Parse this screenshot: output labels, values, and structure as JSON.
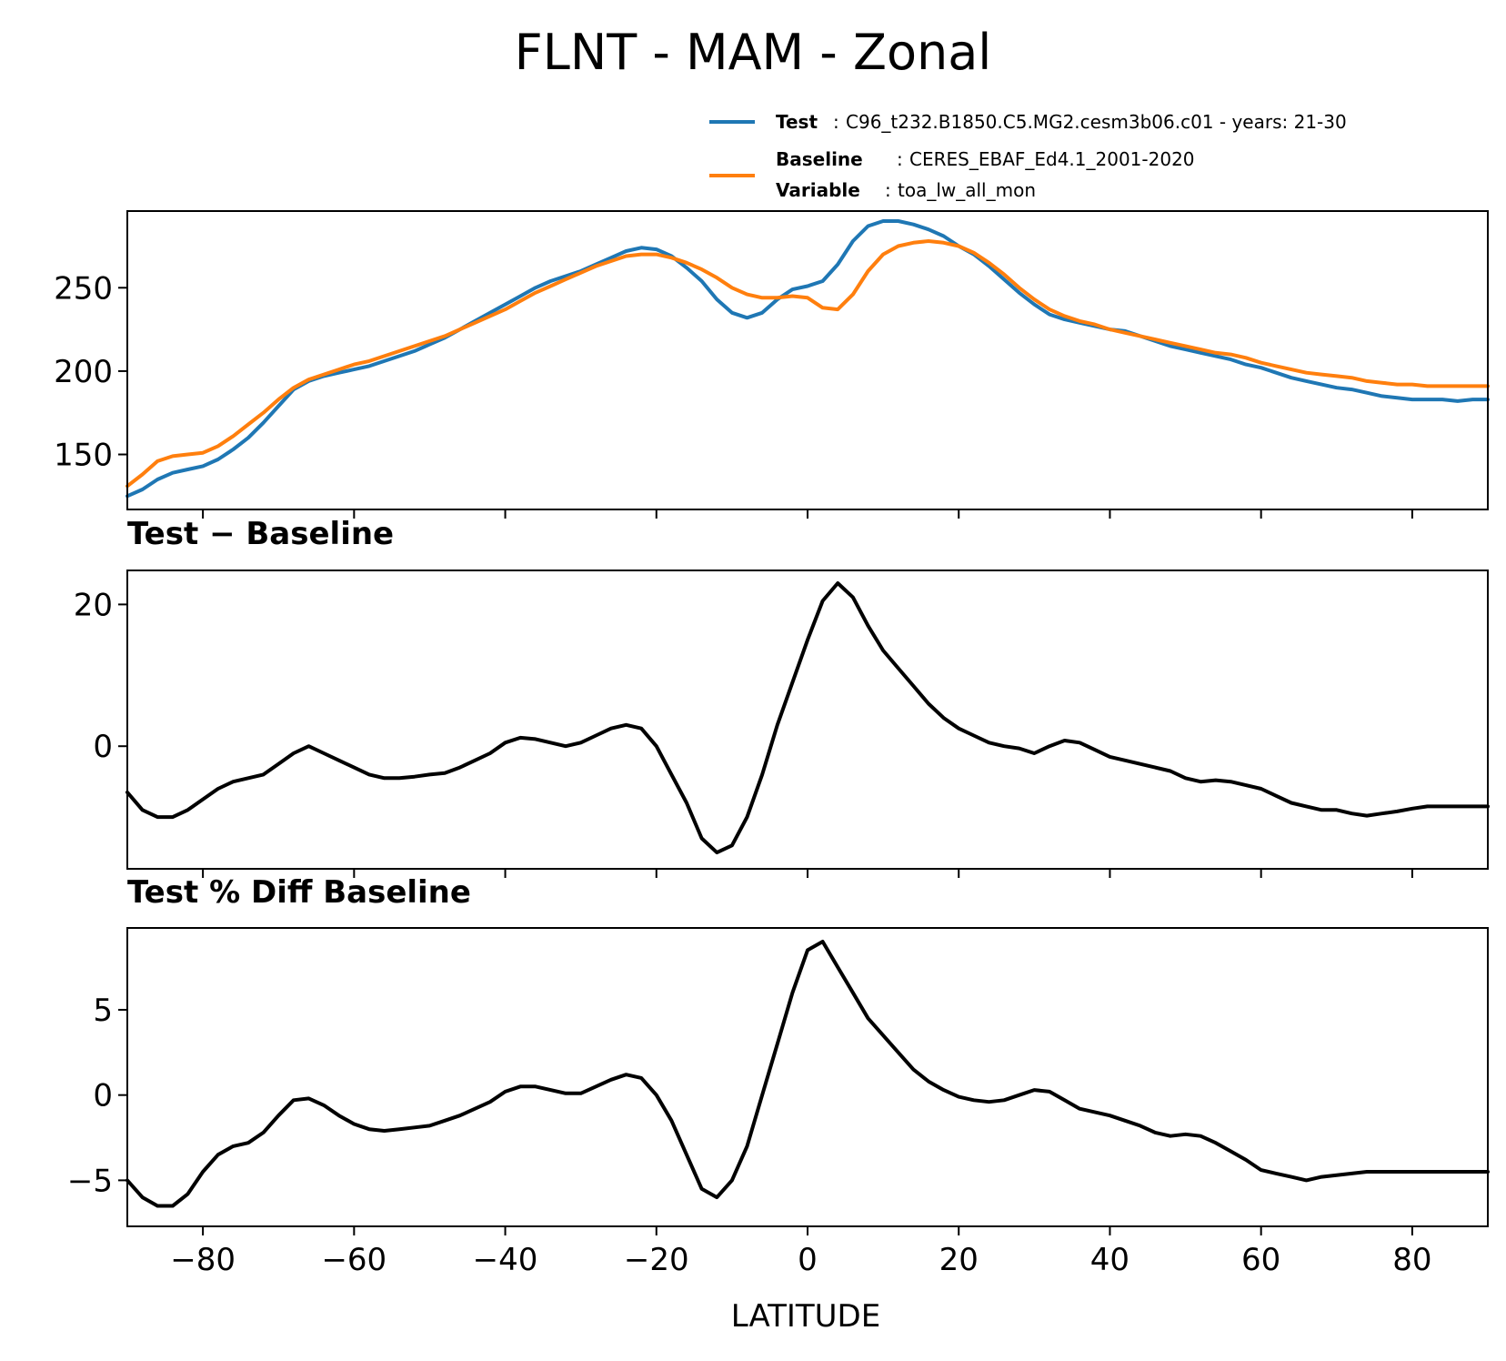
{
  "title": "FLNT - MAM - Zonal",
  "legend": {
    "test_key": "Test",
    "test_value": "C96_t232.B1850.C5.MG2.cesm3b06.c01 - years: 21-30",
    "baseline_key": "Baseline",
    "baseline_value": "CERES_EBAF_Ed4.1_2001-2020",
    "variable_key": "Variable",
    "variable_value": "toa_lw_all_mon",
    "sep": ":"
  },
  "colors": {
    "test": "#1f77b4",
    "baseline": "#ff7f0e",
    "diff": "#000000"
  },
  "chart_data": [
    {
      "type": "line",
      "title": "",
      "xlabel": "",
      "ylabel": "",
      "xlim": [
        -90,
        90
      ],
      "ylim": [
        117,
        296
      ],
      "yticks": [
        150,
        200,
        250
      ],
      "x": [
        -90,
        -88,
        -86,
        -84,
        -82,
        -80,
        -78,
        -76,
        -74,
        -72,
        -70,
        -68,
        -66,
        -64,
        -62,
        -60,
        -58,
        -56,
        -54,
        -52,
        -50,
        -48,
        -46,
        -44,
        -42,
        -40,
        -38,
        -36,
        -34,
        -32,
        -30,
        -28,
        -26,
        -24,
        -22,
        -20,
        -18,
        -16,
        -14,
        -12,
        -10,
        -8,
        -6,
        -4,
        -2,
        0,
        2,
        4,
        6,
        8,
        10,
        12,
        14,
        16,
        18,
        20,
        22,
        24,
        26,
        28,
        30,
        32,
        34,
        36,
        38,
        40,
        42,
        44,
        46,
        48,
        50,
        52,
        54,
        56,
        58,
        60,
        62,
        64,
        66,
        68,
        70,
        72,
        74,
        76,
        78,
        80,
        82,
        84,
        86,
        88,
        90
      ],
      "series": [
        {
          "name": "Test",
          "color": "#1f77b4",
          "values": [
            125,
            129,
            135,
            139,
            141,
            143,
            147,
            153,
            160,
            169,
            179,
            189,
            194,
            197,
            199,
            201,
            203,
            206,
            209,
            212,
            216,
            220,
            225,
            230,
            235,
            240,
            245,
            250,
            254,
            257,
            260,
            264,
            268,
            272,
            274,
            273,
            269,
            262,
            254,
            243,
            235,
            232,
            235,
            243,
            249,
            251,
            254,
            264,
            278,
            287,
            290,
            290,
            288,
            285,
            281,
            275,
            270,
            263,
            255,
            247,
            240,
            234,
            231,
            229,
            227,
            225,
            224,
            221,
            218,
            215,
            213,
            211,
            209,
            207,
            204,
            202,
            199,
            196,
            194,
            192,
            190,
            189,
            187,
            185,
            184,
            183,
            183,
            183,
            182,
            183,
            183
          ]
        },
        {
          "name": "Baseline",
          "color": "#ff7f0e",
          "values": [
            131,
            138,
            146,
            149,
            150,
            151,
            155,
            161,
            168,
            175,
            183,
            190,
            195,
            198,
            201,
            204,
            206,
            209,
            212,
            215,
            218,
            221,
            225,
            229,
            233,
            237,
            242,
            247,
            251,
            255,
            259,
            263,
            266,
            269,
            270,
            270,
            268,
            265,
            261,
            256,
            250,
            246,
            244,
            244,
            245,
            244,
            238,
            237,
            246,
            260,
            270,
            275,
            277,
            278,
            277,
            275,
            271,
            265,
            258,
            250,
            243,
            237,
            233,
            230,
            228,
            225,
            223,
            221,
            219,
            217,
            215,
            213,
            211,
            210,
            208,
            205,
            203,
            201,
            199,
            198,
            197,
            196,
            194,
            193,
            192,
            192,
            191,
            191,
            191,
            191,
            191
          ]
        }
      ]
    },
    {
      "type": "line",
      "title": "Test − Baseline",
      "xlabel": "",
      "ylabel": "",
      "xlim": [
        -90,
        90
      ],
      "ylim": [
        -17.3,
        24.8
      ],
      "yticks": [
        0,
        20
      ],
      "x": [
        -90,
        -88,
        -86,
        -84,
        -82,
        -80,
        -78,
        -76,
        -74,
        -72,
        -70,
        -68,
        -66,
        -64,
        -62,
        -60,
        -58,
        -56,
        -54,
        -52,
        -50,
        -48,
        -46,
        -44,
        -42,
        -40,
        -38,
        -36,
        -34,
        -32,
        -30,
        -28,
        -26,
        -24,
        -22,
        -20,
        -18,
        -16,
        -14,
        -12,
        -10,
        -8,
        -6,
        -4,
        -2,
        0,
        2,
        4,
        6,
        8,
        10,
        12,
        14,
        16,
        18,
        20,
        22,
        24,
        26,
        28,
        30,
        32,
        34,
        36,
        38,
        40,
        42,
        44,
        46,
        48,
        50,
        52,
        54,
        56,
        58,
        60,
        62,
        64,
        66,
        68,
        70,
        72,
        74,
        76,
        78,
        80,
        82,
        84,
        86,
        88,
        90
      ],
      "series": [
        {
          "name": "",
          "color": "#000000",
          "values": [
            -6.5,
            -9,
            -10,
            -10,
            -9,
            -7.5,
            -6,
            -5,
            -4.5,
            -4,
            -2.5,
            -1,
            0,
            -1,
            -2,
            -3,
            -4,
            -4.5,
            -4.5,
            -4.3,
            -4,
            -3.8,
            -3,
            -2,
            -1,
            0.5,
            1.2,
            1,
            0.5,
            0,
            0.5,
            1.5,
            2.5,
            3,
            2.5,
            0,
            -4,
            -8,
            -13,
            -15,
            -14,
            -10,
            -4,
            3,
            9,
            15,
            20.5,
            23,
            21,
            17,
            13.5,
            11,
            8.5,
            6,
            4,
            2.5,
            1.5,
            0.5,
            0,
            -0.3,
            -1,
            0,
            0.8,
            0.5,
            -0.5,
            -1.5,
            -2,
            -2.5,
            -3,
            -3.5,
            -4.5,
            -5,
            -4.8,
            -5,
            -5.5,
            -6,
            -7,
            -8,
            -8.5,
            -9,
            -9,
            -9.5,
            -9.8,
            -9.5,
            -9.2,
            -8.8,
            -8.5,
            -8.5,
            -8.5,
            -8.5,
            -8.5
          ]
        }
      ]
    },
    {
      "type": "line",
      "title": "Test % Diff Baseline",
      "xlabel": "LATITUDE",
      "ylabel": "",
      "xlim": [
        -90,
        90
      ],
      "ylim": [
        -7.7,
        9.8
      ],
      "yticks": [
        -5,
        0,
        5
      ],
      "xticks": [
        -80,
        -60,
        -40,
        -20,
        0,
        20,
        40,
        60,
        80
      ],
      "x": [
        -90,
        -88,
        -86,
        -84,
        -82,
        -80,
        -78,
        -76,
        -74,
        -72,
        -70,
        -68,
        -66,
        -64,
        -62,
        -60,
        -58,
        -56,
        -54,
        -52,
        -50,
        -48,
        -46,
        -44,
        -42,
        -40,
        -38,
        -36,
        -34,
        -32,
        -30,
        -28,
        -26,
        -24,
        -22,
        -20,
        -18,
        -16,
        -14,
        -12,
        -10,
        -8,
        -6,
        -4,
        -2,
        0,
        2,
        4,
        6,
        8,
        10,
        12,
        14,
        16,
        18,
        20,
        22,
        24,
        26,
        28,
        30,
        32,
        34,
        36,
        38,
        40,
        42,
        44,
        46,
        48,
        50,
        52,
        54,
        56,
        58,
        60,
        62,
        64,
        66,
        68,
        70,
        72,
        74,
        76,
        78,
        80,
        82,
        84,
        86,
        88,
        90
      ],
      "series": [
        {
          "name": "",
          "color": "#000000",
          "values": [
            -5,
            -6,
            -6.5,
            -6.5,
            -5.8,
            -4.5,
            -3.5,
            -3,
            -2.8,
            -2.2,
            -1.2,
            -0.3,
            -0.2,
            -0.6,
            -1.2,
            -1.7,
            -2,
            -2.1,
            -2,
            -1.9,
            -1.8,
            -1.5,
            -1.2,
            -0.8,
            -0.4,
            0.2,
            0.5,
            0.5,
            0.3,
            0.1,
            0.1,
            0.5,
            0.9,
            1.2,
            1,
            0,
            -1.5,
            -3.5,
            -5.5,
            -6,
            -5,
            -3,
            0,
            3,
            6,
            8.5,
            9,
            7.5,
            6,
            4.5,
            3.5,
            2.5,
            1.5,
            0.8,
            0.3,
            -0.1,
            -0.3,
            -0.4,
            -0.3,
            0,
            0.3,
            0.2,
            -0.3,
            -0.8,
            -1,
            -1.2,
            -1.5,
            -1.8,
            -2.2,
            -2.4,
            -2.3,
            -2.4,
            -2.8,
            -3.3,
            -3.8,
            -4.4,
            -4.6,
            -4.8,
            -5,
            -4.8,
            -4.7,
            -4.6,
            -4.5,
            -4.5,
            -4.5,
            -4.5,
            -4.5,
            -4.5,
            -4.5,
            -4.5,
            -4.5
          ]
        }
      ]
    }
  ]
}
